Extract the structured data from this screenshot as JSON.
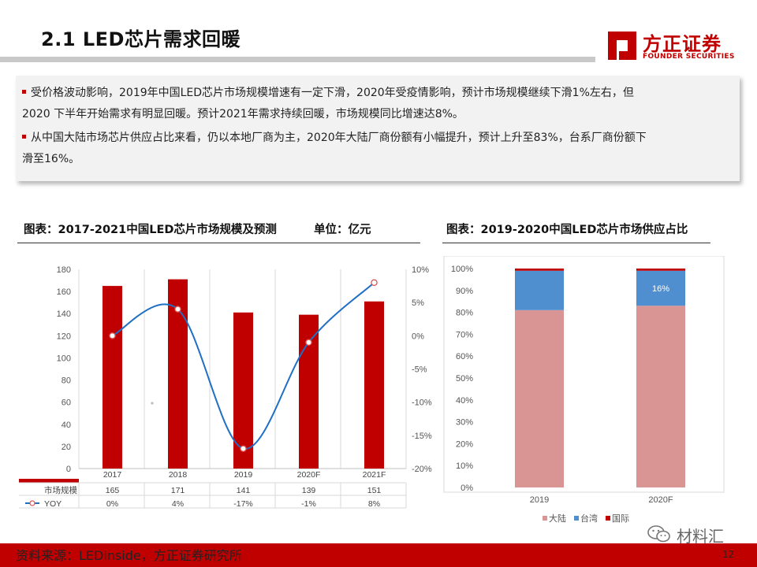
{
  "header": {
    "title": "2.1 LED芯片需求回暖",
    "logo_cn": "方正证券",
    "logo_en": "FOUNDER SECURITIES",
    "brand_color": "#c00000"
  },
  "summary": {
    "bullet1_line1": "受价格波动影响，2019年中国LED芯片市场规模增速有一定下滑，2020年受疫情影响，预计市场规模继续下滑1%左右，但",
    "bullet1_line2": "2020 下半年开始需求有明显回暖。预计2021年需求持续回暖，市场规模同比增速达8%。",
    "bullet2_line1": "从中国大陆市场芯片供应占比来看，仍以本地厂商为主，2020年大陆厂商份额有小幅提升，预计上升至83%，台系厂商份额下",
    "bullet2_line2": "滑至16%。"
  },
  "left_chart_title": "图表：2017-2021中国LED芯片市场规模及预测",
  "left_chart_unit": "单位：亿元",
  "right_chart_title": "图表：2019-2020中国LED芯片市场供应占比",
  "chart_data": [
    {
      "type": "bar",
      "title": "2017-2021中国LED芯片市场规模及预测",
      "categories": [
        "2017",
        "2018",
        "2019",
        "2020F",
        "2021F"
      ],
      "series": [
        {
          "name": "市场规模",
          "type": "bar",
          "axis": "left",
          "values": [
            165,
            171,
            141,
            139,
            151
          ],
          "labels": [
            "165",
            "171",
            "141",
            "139",
            "151"
          ]
        },
        {
          "name": "YOY",
          "type": "line",
          "axis": "right",
          "values": [
            0,
            4,
            -17,
            -1,
            8
          ],
          "labels": [
            "0%",
            "4%",
            "-17%",
            "-1%",
            "8%"
          ]
        }
      ],
      "ylim": [
        0,
        180
      ],
      "y_ticks": [
        "0",
        "20",
        "40",
        "60",
        "80",
        "100",
        "120",
        "140",
        "160",
        "180"
      ],
      "y2lim": [
        -20,
        10
      ],
      "y2_ticks": [
        "-20%",
        "-15%",
        "-10%",
        "-5%",
        "0%",
        "5%",
        "10%"
      ],
      "colors": {
        "bar": "#c00000",
        "line": "#1f6fc5",
        "marker_edge": "#e05050"
      }
    },
    {
      "type": "bar",
      "stacked": true,
      "title": "2019-2020中国LED芯片市场供应占比",
      "categories": [
        "2019",
        "2020F"
      ],
      "series": [
        {
          "name": "大陆",
          "values": [
            81,
            83
          ],
          "color": "#d99594"
        },
        {
          "name": "台湾",
          "values": [
            18,
            16
          ],
          "color": "#4f8fd0",
          "label": "16%"
        },
        {
          "name": "国际",
          "values": [
            1,
            1
          ],
          "color": "#c00000"
        }
      ],
      "ylim": [
        0,
        100
      ],
      "y_ticks": [
        "0%",
        "10%",
        "20%",
        "30%",
        "40%",
        "50%",
        "60%",
        "70%",
        "80%",
        "90%",
        "100%"
      ]
    }
  ],
  "footer": {
    "source": "资料来源：LEDinside，方正证券研究所",
    "page": "12",
    "watermark": "材料汇"
  }
}
